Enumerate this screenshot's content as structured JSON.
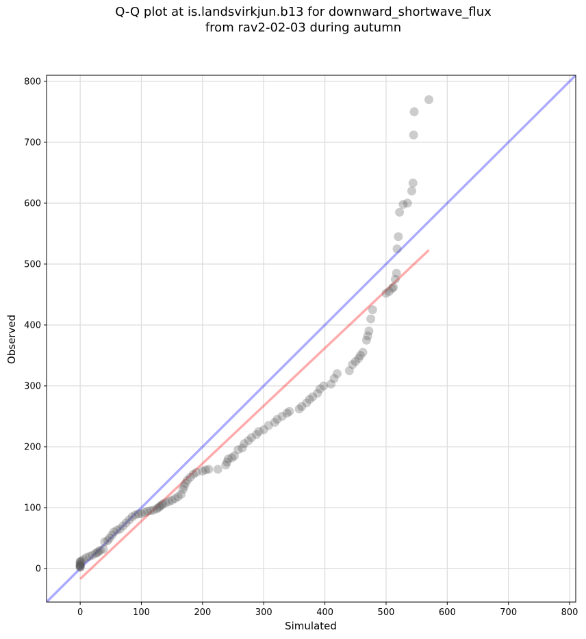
{
  "chart_data": {
    "type": "scatter",
    "title_lines": [
      "Q-Q plot at is.landsvirkjun.b13 for downward_shortwave_flux",
      "from rav2-02-03 during autumn"
    ],
    "xlabel": "Simulated",
    "ylabel": "Observed",
    "xlim": [
      -55,
      810
    ],
    "ylim": [
      -55,
      810
    ],
    "xticks": [
      0,
      100,
      200,
      300,
      400,
      500,
      600,
      700,
      800
    ],
    "yticks": [
      0,
      100,
      200,
      300,
      400,
      500,
      600,
      700,
      800
    ],
    "grid": true,
    "points": {
      "x": [
        0,
        0,
        0,
        0,
        0,
        0,
        0,
        0,
        2,
        5,
        10,
        15,
        20,
        25,
        28,
        30,
        33,
        38,
        40,
        45,
        48,
        52,
        55,
        60,
        65,
        70,
        75,
        80,
        85,
        90,
        95,
        100,
        105,
        110,
        115,
        120,
        125,
        128,
        130,
        133,
        135,
        140,
        145,
        150,
        155,
        160,
        165,
        168,
        170,
        172,
        175,
        180,
        185,
        190,
        200,
        205,
        210,
        225,
        238,
        240,
        242,
        248,
        252,
        258,
        265,
        268,
        275,
        280,
        288,
        292,
        300,
        308,
        318,
        322,
        330,
        338,
        342,
        358,
        362,
        370,
        375,
        380,
        388,
        392,
        398,
        410,
        415,
        420,
        440,
        445,
        450,
        455,
        458,
        462,
        468,
        470,
        472,
        475,
        478,
        500,
        505,
        510,
        512,
        515,
        517,
        518,
        520,
        522,
        528,
        535,
        542,
        544,
        545,
        546,
        570
      ],
      "y": [
        2,
        3,
        4,
        5,
        6,
        8,
        10,
        12,
        12,
        15,
        18,
        20,
        22,
        25,
        26,
        28,
        30,
        32,
        44,
        46,
        50,
        55,
        60,
        63,
        65,
        70,
        75,
        80,
        85,
        88,
        90,
        90,
        92,
        94,
        95,
        96,
        98,
        100,
        102,
        104,
        106,
        108,
        110,
        112,
        115,
        118,
        122,
        130,
        135,
        140,
        145,
        150,
        155,
        158,
        160,
        162,
        163,
        163,
        170,
        175,
        180,
        182,
        185,
        195,
        198,
        205,
        210,
        215,
        220,
        225,
        228,
        235,
        240,
        245,
        250,
        255,
        258,
        262,
        266,
        272,
        278,
        282,
        288,
        295,
        300,
        303,
        312,
        320,
        325,
        335,
        340,
        345,
        350,
        355,
        375,
        382,
        390,
        410,
        425,
        452,
        455,
        460,
        462,
        475,
        485,
        525,
        545,
        585,
        598,
        600,
        620,
        633,
        712,
        750,
        770
      ]
    },
    "reference_lines": [
      {
        "name": "1:1",
        "color": "#0000ff",
        "x": [
          -55,
          810
        ],
        "y": [
          -55,
          810
        ]
      },
      {
        "name": "fit",
        "color": "#ff0000",
        "x": [
          0,
          570
        ],
        "y": [
          -17,
          523
        ]
      }
    ],
    "colors": {
      "points": "#555555",
      "one_to_one": "#0000ff",
      "fit": "#ff0000",
      "grid": "#dddddd"
    }
  }
}
